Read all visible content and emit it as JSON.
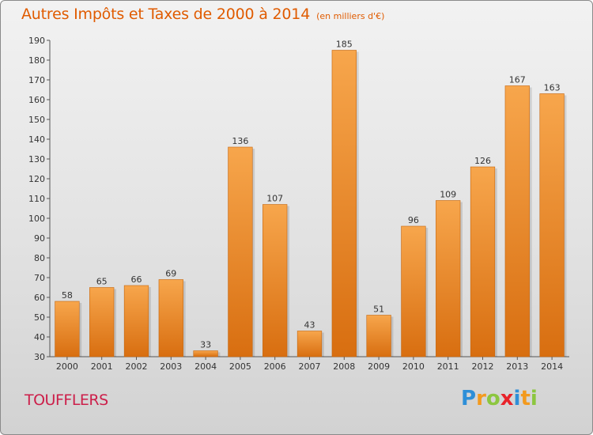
{
  "header": {
    "title": "Autres Impôts et Taxes de 2000 à 2014",
    "unit": "(en milliers d'€)"
  },
  "footer": {
    "commune": "TOUFFLERS",
    "logo_letters": [
      "P",
      "r",
      "o",
      "x",
      "i",
      "t",
      "i"
    ],
    "logo_colors": [
      "#2e8fd8",
      "#f39a1e",
      "#8cc63f",
      "#e8232a",
      "#2e8fd8",
      "#f39a1e",
      "#8cc63f"
    ]
  },
  "colors": {
    "bar_light": "#f7a64c",
    "bar_dark": "#d86e10",
    "text": "#333333"
  },
  "chart_data": {
    "type": "bar",
    "title": "Autres Impôts et Taxes de 2000 à 2014",
    "subtitle": "(en milliers d'€)",
    "xlabel": "",
    "ylabel": "",
    "categories": [
      "2000",
      "2001",
      "2002",
      "2003",
      "2004",
      "2005",
      "2006",
      "2007",
      "2008",
      "2009",
      "2010",
      "2011",
      "2012",
      "2013",
      "2014"
    ],
    "values": [
      58,
      65,
      66,
      69,
      33,
      136,
      107,
      43,
      185,
      51,
      96,
      109,
      126,
      167,
      163
    ],
    "ylim": [
      30,
      190
    ],
    "yticks": [
      30,
      40,
      50,
      60,
      70,
      80,
      90,
      100,
      110,
      120,
      130,
      140,
      150,
      160,
      170,
      180,
      190
    ],
    "grid": false,
    "data_labels": true
  }
}
